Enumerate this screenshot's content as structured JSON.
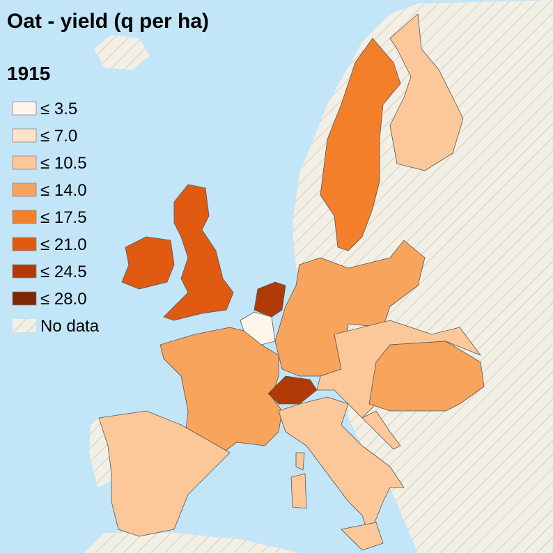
{
  "title": "Oat - yield (q per ha)",
  "year": "1915",
  "legend": [
    {
      "label": "≤ 3.5",
      "color": "#fff5eb"
    },
    {
      "label": "≤ 7.0",
      "color": "#fee3c8"
    },
    {
      "label": "≤ 10.5",
      "color": "#fcc89a"
    },
    {
      "label": "≤ 14.0",
      "color": "#f8a45c"
    },
    {
      "label": "≤ 17.5",
      "color": "#f47f2a"
    },
    {
      "label": "≤ 21.0",
      "color": "#e05a12"
    },
    {
      "label": "≤ 24.5",
      "color": "#b03a06"
    },
    {
      "label": "≤ 28.0",
      "color": "#7f2704"
    },
    {
      "label": "No data",
      "color": "#f2efe6",
      "hatched": true
    }
  ]
}
